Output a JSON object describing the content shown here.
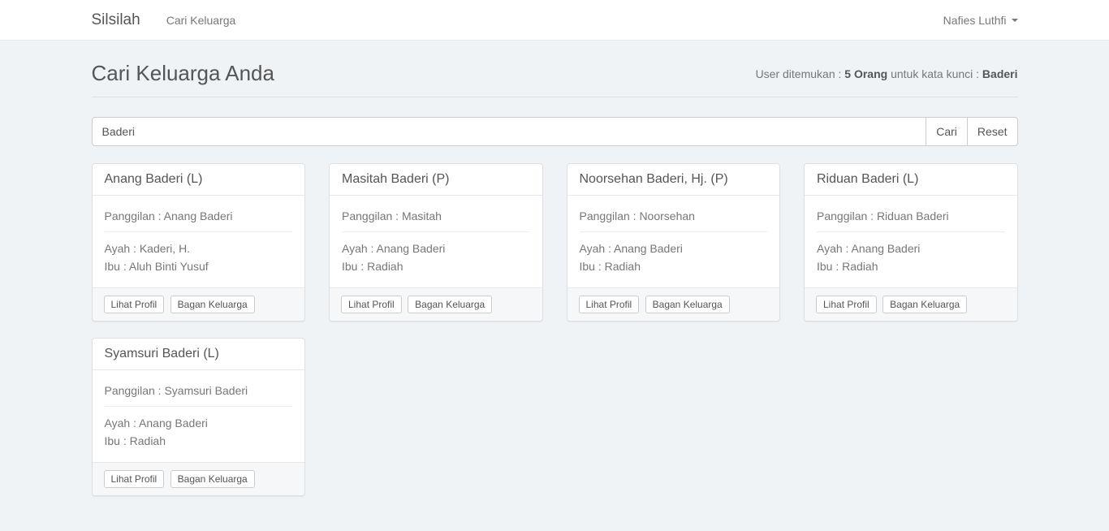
{
  "navbar": {
    "brand": "Silsilah",
    "nav_link": "Cari Keluarga",
    "user": "Nafies Luthfi"
  },
  "page_header": {
    "title": "Cari Keluarga Anda",
    "summary": {
      "prefix": "User ditemukan : ",
      "count": "5 Orang",
      "middle": " untuk kata kunci : ",
      "keyword": "Baderi"
    }
  },
  "search": {
    "value": "Baderi",
    "cari_button": "Cari",
    "reset_button": "Reset"
  },
  "card_actions": {
    "lihat_profil": "Lihat Profil",
    "bagan_keluarga": "Bagan Keluarga"
  },
  "cards": [
    {
      "name": "Anang Baderi (L)",
      "panggilan": "Panggilan : Anang Baderi",
      "ayah": "Ayah : Kaderi, H.",
      "ibu": "Ibu : Aluh Binti Yusuf"
    },
    {
      "name": "Masitah Baderi (P)",
      "panggilan": "Panggilan : Masitah",
      "ayah": "Ayah : Anang Baderi",
      "ibu": "Ibu : Radiah"
    },
    {
      "name": "Noorsehan Baderi, Hj. (P)",
      "panggilan": "Panggilan : Noorsehan",
      "ayah": "Ayah : Anang Baderi",
      "ibu": "Ibu : Radiah"
    },
    {
      "name": "Riduan Baderi (L)",
      "panggilan": "Panggilan : Riduan Baderi",
      "ayah": "Ayah : Anang Baderi",
      "ibu": "Ibu : Radiah"
    },
    {
      "name": "Syamsuri Baderi (L)",
      "panggilan": "Panggilan : Syamsuri Baderi",
      "ayah": "Ayah : Anang Baderi",
      "ibu": "Ibu : Radiah"
    }
  ],
  "colors": {
    "page_background": "#eff3f6",
    "navbar_background": "#ffffff",
    "card_border": "#dddfe2",
    "card_footer_background": "#f6f7f9",
    "text_primary": "#555555",
    "text_secondary": "#777777"
  }
}
